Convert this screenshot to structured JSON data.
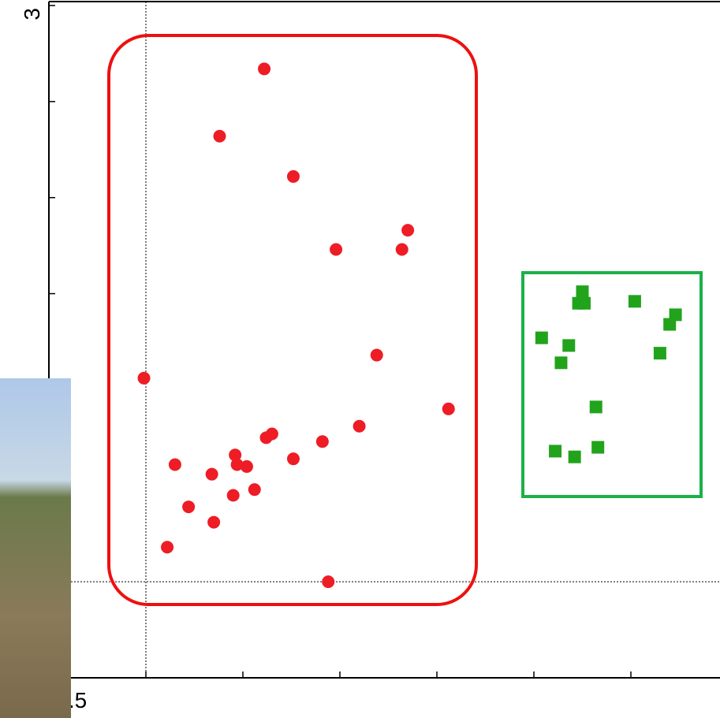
{
  "chart_data": {
    "type": "scatter",
    "xlim": [
      -0.5,
      3.0
    ],
    "ylim": [
      -0.5,
      3.0
    ],
    "xticks": [
      -0.5,
      3.0
    ],
    "yticks": [
      -0.5,
      3.0
    ],
    "minor_ticks": [
      0,
      0.5,
      1.0,
      1.5,
      2.0,
      2.5
    ],
    "vlines": [
      0
    ],
    "hlines": [
      0
    ],
    "series": [
      {
        "color": "#ee1c25",
        "marker": "circle",
        "x": [
          0.61,
          0.38,
          0.76,
          0.98,
          1.35,
          1.32,
          1.19,
          -0.01,
          1.56,
          1.1,
          0.91,
          0.65,
          0.62,
          0.76,
          0.46,
          0.47,
          0.52,
          0.15,
          0.34,
          0.56,
          0.45,
          0.22,
          0.35,
          0.11,
          0.94
        ],
        "values": [
          2.67,
          2.32,
          2.11,
          1.73,
          1.83,
          1.73,
          1.18,
          1.06,
          0.9,
          0.81,
          0.73,
          0.77,
          0.75,
          0.64,
          0.66,
          0.61,
          0.6,
          0.61,
          0.56,
          0.48,
          0.45,
          0.39,
          0.31,
          0.18,
          0.0
        ]
      },
      {
        "color": "#22a31c",
        "marker": "square",
        "x": [
          2.25,
          2.23,
          2.26,
          2.52,
          2.73,
          2.7,
          2.04,
          2.18,
          2.14,
          2.65,
          2.32,
          2.11,
          2.21,
          2.33
        ],
        "values": [
          1.51,
          1.45,
          1.45,
          1.46,
          1.39,
          1.34,
          1.27,
          1.23,
          1.14,
          1.19,
          0.91,
          0.68,
          0.65,
          0.7
        ]
      }
    ]
  }
}
